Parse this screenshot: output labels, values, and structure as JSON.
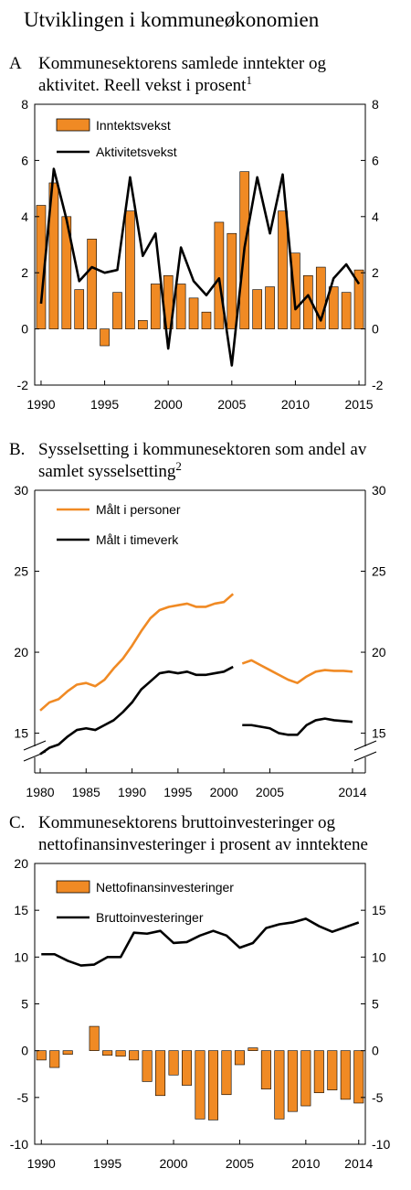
{
  "title": "Utviklingen i kommuneøkonomien",
  "colors": {
    "orange": "#F08A24",
    "black": "#000000",
    "bar_stroke": "#000000"
  },
  "chart_data": [
    {
      "id": "A",
      "type": "bar+line",
      "letter": "A",
      "title_lines": [
        "Kommunesektorens samlede inntekter og",
        "aktivitet. Reell vekst i prosent"
      ],
      "title_sup": "1",
      "ylim": [
        -2,
        8
      ],
      "yticks": [
        "-2",
        "0",
        "2",
        "4",
        "6",
        "8"
      ],
      "xlim": [
        1989.5,
        2015.5
      ],
      "xticks": [
        "1990",
        "1995",
        "2000",
        "2005",
        "2010",
        "2015"
      ],
      "legend": [
        "Inntektsvekst",
        "Aktivitetsvekst"
      ],
      "series": [
        {
          "name": "Inntektsvekst",
          "type": "bar",
          "x": [
            1990,
            1991,
            1992,
            1993,
            1994,
            1995,
            1996,
            1997,
            1998,
            1999,
            2000,
            2001,
            2002,
            2003,
            2004,
            2005,
            2006,
            2007,
            2008,
            2009,
            2010,
            2011,
            2012,
            2013,
            2014,
            2015
          ],
          "values": [
            4.4,
            5.2,
            4.0,
            1.4,
            3.2,
            -0.6,
            1.3,
            4.2,
            0.3,
            1.6,
            1.9,
            1.6,
            1.1,
            0.6,
            3.8,
            3.4,
            5.6,
            1.4,
            1.5,
            4.2,
            2.7,
            1.9,
            2.2,
            1.5,
            1.3,
            2.1
          ]
        },
        {
          "name": "Aktivitetsvekst",
          "type": "line",
          "x": [
            1990,
            1991,
            1992,
            1993,
            1994,
            1995,
            1996,
            1997,
            1998,
            1999,
            2000,
            2001,
            2002,
            2003,
            2004,
            2005,
            2006,
            2007,
            2008,
            2009,
            2010,
            2011,
            2012,
            2013,
            2014,
            2015
          ],
          "values": [
            0.9,
            5.7,
            3.9,
            1.7,
            2.2,
            2.0,
            2.1,
            5.4,
            2.6,
            3.4,
            -0.7,
            2.9,
            1.7,
            1.2,
            1.8,
            -1.3,
            2.9,
            5.4,
            3.4,
            5.5,
            0.7,
            1.2,
            0.3,
            1.8,
            2.3,
            1.6
          ]
        }
      ]
    },
    {
      "id": "B",
      "type": "line",
      "letter": "B.",
      "title_lines": [
        "Sysselsetting i kommunesektoren som andel av",
        "samlet sysselsetting"
      ],
      "title_sup": "2",
      "ylim": [
        13,
        30
      ],
      "yticks": [
        "15",
        "20",
        "25",
        "30"
      ],
      "xlim": [
        1980,
        2015
      ],
      "xticks": [
        "1980",
        "1985",
        "1990",
        "1995",
        "2000",
        "2005",
        "2014"
      ],
      "axis_break": true,
      "legend": [
        "Målt i personer",
        "Målt i timeverk"
      ],
      "series": [
        {
          "name": "Målt i personer",
          "segments": [
            {
              "x": [
                1980,
                1981,
                1982,
                1983,
                1984,
                1985,
                1986,
                1987,
                1988,
                1989,
                1990,
                1991,
                1992,
                1993,
                1994,
                1995,
                1996,
                1997,
                1998,
                1999,
                2000,
                2001
              ],
              "values": [
                16.4,
                16.9,
                17.1,
                17.6,
                18.0,
                18.1,
                17.9,
                18.3,
                19.0,
                19.6,
                20.4,
                21.3,
                22.1,
                22.6,
                22.8,
                22.9,
                23.0,
                22.8,
                22.8,
                23.0,
                23.1,
                23.6
              ]
            },
            {
              "x": [
                2002,
                2003,
                2004,
                2005,
                2006,
                2007,
                2008,
                2009,
                2010,
                2011,
                2012,
                2013,
                2014
              ],
              "values": [
                19.3,
                19.5,
                19.2,
                18.9,
                18.6,
                18.3,
                18.1,
                18.5,
                18.8,
                18.9,
                18.85,
                18.85,
                18.8
              ]
            }
          ]
        },
        {
          "name": "Målt i timeverk",
          "segments": [
            {
              "x": [
                1980,
                1981,
                1982,
                1983,
                1984,
                1985,
                1986,
                1987,
                1988,
                1989,
                1990,
                1991,
                1992,
                1993,
                1994,
                1995,
                1996,
                1997,
                1998,
                1999,
                2000,
                2001
              ],
              "values": [
                13.7,
                14.1,
                14.3,
                14.8,
                15.2,
                15.3,
                15.2,
                15.5,
                15.8,
                16.3,
                16.9,
                17.7,
                18.2,
                18.7,
                18.8,
                18.7,
                18.8,
                18.6,
                18.6,
                18.7,
                18.8,
                19.1
              ]
            },
            {
              "x": [
                2002,
                2003,
                2004,
                2005,
                2006,
                2007,
                2008,
                2009,
                2010,
                2011,
                2012,
                2013,
                2014
              ],
              "values": [
                15.5,
                15.5,
                15.4,
                15.3,
                15.0,
                14.9,
                14.9,
                15.5,
                15.8,
                15.9,
                15.8,
                15.75,
                15.7
              ]
            }
          ]
        }
      ]
    },
    {
      "id": "C",
      "type": "bar+line",
      "letter": "C.",
      "title_lines": [
        "Kommunesektorens bruttoinvesteringer og",
        "nettofinansinvesteringer i prosent av inntektene"
      ],
      "title_sup": "",
      "ylim": [
        -10,
        20
      ],
      "yticks_left": [
        "-10",
        "-5",
        "0",
        "5",
        "10",
        "15",
        "20"
      ],
      "yticks_right": [
        "-10",
        "-5",
        "0",
        "5",
        "10",
        "15"
      ],
      "xlim": [
        1989.5,
        2014.5
      ],
      "xticks": [
        "1990",
        "1995",
        "2000",
        "2005",
        "2010",
        "2014"
      ],
      "legend": [
        "Nettofinansinvesteringer",
        "Bruttoinvesteringer"
      ],
      "series": [
        {
          "name": "Nettofinansinvesteringer",
          "type": "bar",
          "x": [
            1990,
            1991,
            1992,
            1993,
            1994,
            1995,
            1996,
            1997,
            1998,
            1999,
            2000,
            2001,
            2002,
            2003,
            2004,
            2005,
            2006,
            2007,
            2008,
            2009,
            2010,
            2011,
            2012,
            2013,
            2014
          ],
          "values": [
            -1.0,
            -1.8,
            -0.4,
            0.0,
            2.6,
            -0.5,
            -0.6,
            -1.0,
            -3.3,
            -4.8,
            -2.6,
            -3.7,
            -7.3,
            -7.4,
            -4.7,
            -1.5,
            0.3,
            -4.1,
            -7.3,
            -6.5,
            -5.9,
            -4.5,
            -4.2,
            -5.2,
            -5.6
          ]
        },
        {
          "name": "Bruttoinvesteringer",
          "type": "line",
          "x": [
            1990,
            1991,
            1992,
            1993,
            1994,
            1995,
            1996,
            1997,
            1998,
            1999,
            2000,
            2001,
            2002,
            2003,
            2004,
            2005,
            2006,
            2007,
            2008,
            2009,
            2010,
            2011,
            2012,
            2013,
            2014
          ],
          "values": [
            10.3,
            10.3,
            9.6,
            9.1,
            9.2,
            10.0,
            10.0,
            12.6,
            12.5,
            12.8,
            11.5,
            11.6,
            12.3,
            12.8,
            12.3,
            11.0,
            11.5,
            13.1,
            13.5,
            13.7,
            14.1,
            13.3,
            12.7,
            13.2,
            13.7
          ]
        }
      ]
    }
  ]
}
